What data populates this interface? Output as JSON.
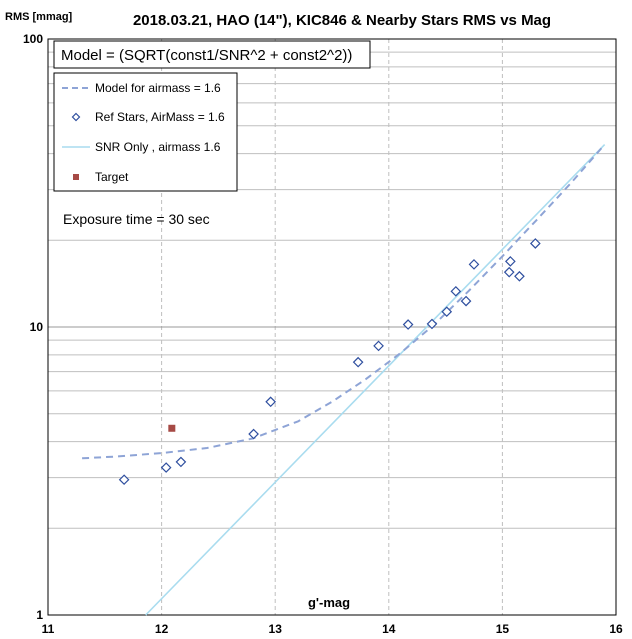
{
  "chart_data": {
    "type": "scatter",
    "title": "2018.03.21, HAO (14\"), KIC846 & Nearby Stars RMS vs Mag",
    "xlabel": "g'-mag",
    "ylabel": "RMS [mmag]",
    "xlim": [
      11,
      16
    ],
    "ylim": [
      1,
      100
    ],
    "y_scale": "log",
    "x_ticks": [
      "11",
      "12",
      "13",
      "14",
      "15",
      "16"
    ],
    "y_ticks": [
      "1",
      "10",
      "100"
    ],
    "grid": true,
    "model_note": "Model = (SQRT(const1/SNR^2 + const2^2))",
    "exposure_note": "Exposure time = 30 sec",
    "legend_position": "top-left",
    "legend": [
      {
        "label": "Model for airmass = 1.6",
        "marker": "dashed-line"
      },
      {
        "label": "Ref Stars, AirMass = 1.6",
        "marker": "open-diamond"
      },
      {
        "label": "SNR Only , airmass 1.6",
        "marker": "solid-line"
      },
      {
        "label": "Target",
        "marker": "filled-square"
      }
    ],
    "colors": {
      "model": "#8ea4d6",
      "ref_stars": "#2f4f9f",
      "snr_only": "#a9dcef",
      "target": "#a64a45",
      "grid": "#bfbfbf"
    },
    "series": [
      {
        "name": "Model for airmass = 1.6",
        "style": "dashed",
        "points": [
          {
            "x": 11.3,
            "y": 3.5
          },
          {
            "x": 11.6,
            "y": 3.55
          },
          {
            "x": 12.0,
            "y": 3.65
          },
          {
            "x": 12.4,
            "y": 3.8
          },
          {
            "x": 12.8,
            "y": 4.1
          },
          {
            "x": 13.2,
            "y": 4.7
          },
          {
            "x": 13.5,
            "y": 5.5
          },
          {
            "x": 13.8,
            "y": 6.6
          },
          {
            "x": 14.1,
            "y": 8.1
          },
          {
            "x": 14.4,
            "y": 10.2
          },
          {
            "x": 14.7,
            "y": 13.3
          },
          {
            "x": 15.0,
            "y": 17.6
          },
          {
            "x": 15.3,
            "y": 23.5
          },
          {
            "x": 15.6,
            "y": 31.5
          },
          {
            "x": 15.9,
            "y": 43.0
          }
        ]
      },
      {
        "name": "Ref Stars, AirMass = 1.6",
        "style": "markers",
        "points": [
          {
            "x": 11.67,
            "y": 2.95
          },
          {
            "x": 12.04,
            "y": 3.25
          },
          {
            "x": 12.17,
            "y": 3.4
          },
          {
            "x": 12.81,
            "y": 4.25
          },
          {
            "x": 12.96,
            "y": 5.5
          },
          {
            "x": 13.73,
            "y": 7.55
          },
          {
            "x": 13.91,
            "y": 8.6
          },
          {
            "x": 14.17,
            "y": 10.2
          },
          {
            "x": 14.38,
            "y": 10.25
          },
          {
            "x": 14.51,
            "y": 11.3
          },
          {
            "x": 14.59,
            "y": 13.3
          },
          {
            "x": 14.68,
            "y": 12.3
          },
          {
            "x": 14.75,
            "y": 16.5
          },
          {
            "x": 15.06,
            "y": 15.5
          },
          {
            "x": 15.07,
            "y": 16.9
          },
          {
            "x": 15.15,
            "y": 15.0
          },
          {
            "x": 15.29,
            "y": 19.5
          }
        ]
      },
      {
        "name": "SNR Only , airmass 1.6",
        "style": "solid",
        "points": [
          {
            "x": 11.86,
            "y": 1.0
          },
          {
            "x": 15.9,
            "y": 43.0
          }
        ]
      },
      {
        "name": "Target",
        "style": "square",
        "points": [
          {
            "x": 12.09,
            "y": 4.45
          }
        ]
      }
    ]
  }
}
